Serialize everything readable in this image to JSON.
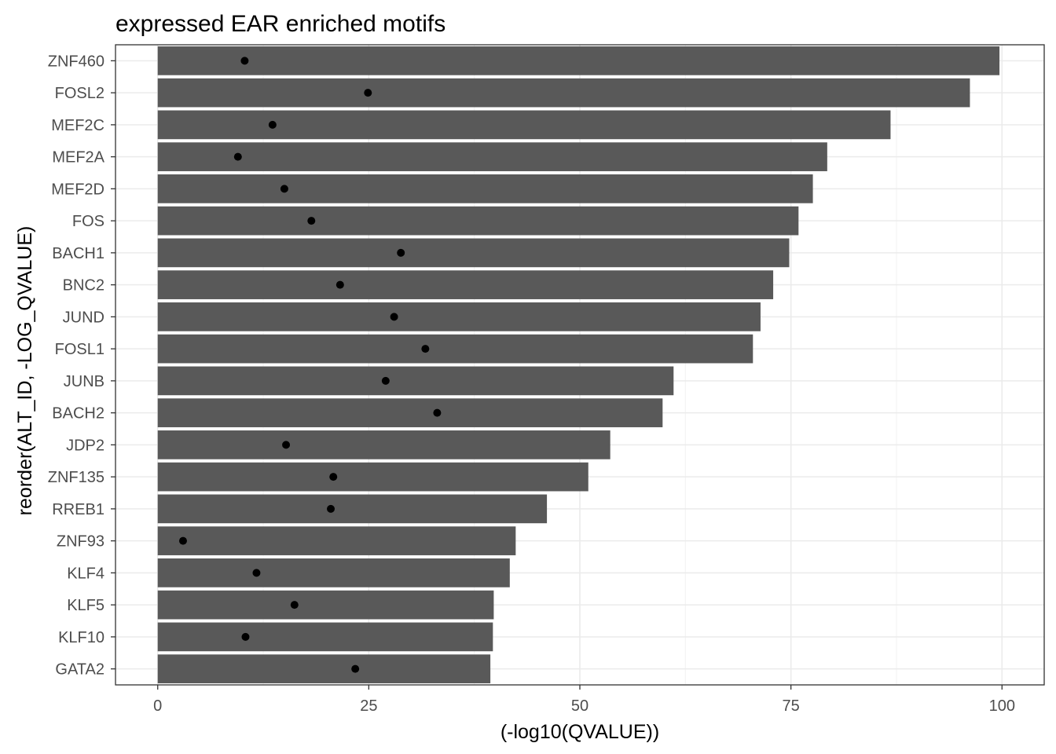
{
  "chart_data": {
    "type": "bar",
    "orientation": "horizontal",
    "title": "expressed EAR enriched motifs",
    "xlabel": "(-log10(QVALUE))",
    "ylabel": "reorder(ALT_ID, -LOG_QVALUE)",
    "xlim": [
      -5,
      105
    ],
    "x_ticks": [
      0,
      25,
      50,
      75,
      100
    ],
    "x_tick_labels": [
      "0",
      "25",
      "50",
      "75",
      "100"
    ],
    "grid": true,
    "categories": [
      "ZNF460",
      "FOSL2",
      "MEF2C",
      "MEF2A",
      "MEF2D",
      "FOS",
      "BACH1",
      "BNC2",
      "JUND",
      "FOSL1",
      "JUNB",
      "BACH2",
      "JDP2",
      "ZNF135",
      "RREB1",
      "ZNF93",
      "KLF4",
      "KLF5",
      "KLF10",
      "GATA2"
    ],
    "series": [
      {
        "type": "bar",
        "values": [
          99.7,
          96.2,
          86.8,
          79.3,
          77.6,
          75.9,
          74.8,
          72.9,
          71.4,
          70.5,
          61.1,
          59.8,
          53.6,
          51.0,
          46.1,
          42.4,
          41.7,
          39.8,
          39.7,
          39.4
        ],
        "color": "#595959"
      },
      {
        "type": "point",
        "values": [
          10.3,
          24.9,
          13.6,
          9.5,
          15.0,
          18.2,
          28.8,
          21.6,
          28.0,
          31.7,
          27.0,
          33.1,
          15.2,
          20.8,
          20.5,
          3.0,
          11.7,
          16.2,
          10.4,
          23.4
        ],
        "color": "#000000"
      }
    ]
  },
  "colors": {
    "bar": "#595959",
    "point": "#000000",
    "grid_major": "#ebebeb",
    "grid_minor": "#f2f2f2",
    "panel_border": "#333333",
    "tick_text": "#4d4d4d"
  }
}
